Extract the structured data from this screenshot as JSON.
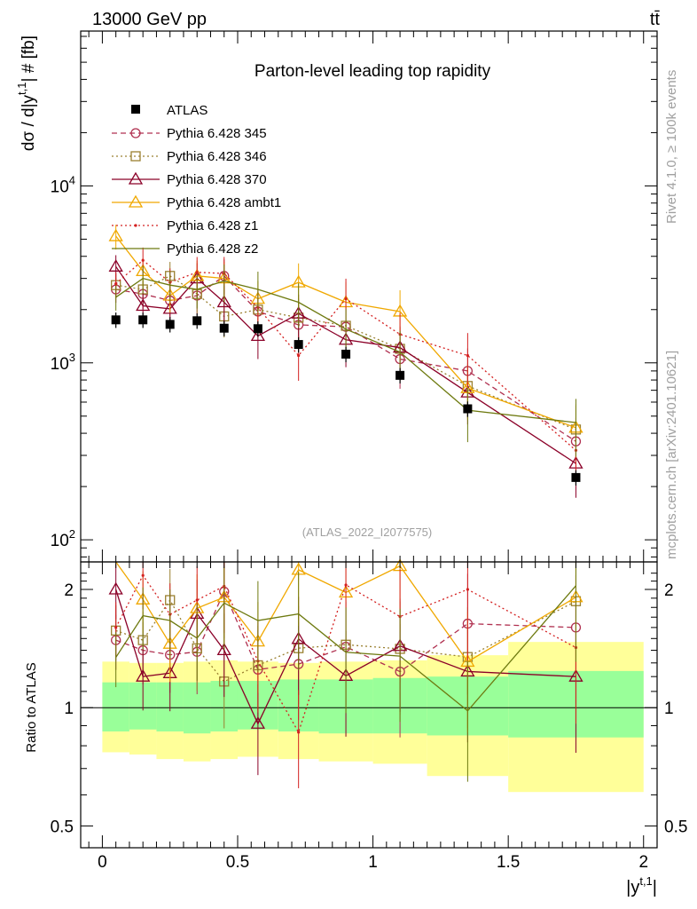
{
  "header": {
    "left": "13000 GeV pp",
    "right": "tt̄"
  },
  "side_labels": {
    "rivet": "Rivet 4.1.0, ≥ 100k events",
    "mcplots": "mcplots.cern.ch [arXiv:2401.10621]"
  },
  "chart_data": {
    "type": "line",
    "title": "Parton-level leading top rapidity",
    "analysis": "(ATLAS_2022_I2077575)",
    "xlabel": "|y^{t,1}|",
    "ylabel": "dσ / d|y^{t,1}| # [fb]",
    "ratio_ylabel": "Ratio to ATLAS",
    "xlim": [
      -0.08,
      2.05
    ],
    "ylim": [
      75,
      75000
    ],
    "ratio_ylim": [
      0.44,
      2.35
    ],
    "x_ticks": [
      "0",
      "0.5",
      "1",
      "1.5",
      "2"
    ],
    "x_tick_values": [
      0,
      0.5,
      1,
      1.5,
      2
    ],
    "y_ticks": [
      "10^2",
      "10^3",
      "10^4"
    ],
    "y_tick_values": [
      100,
      1000,
      10000
    ],
    "ratio_ticks": [
      "0.5",
      "1",
      "2"
    ],
    "ratio_tick_values": [
      0.5,
      1,
      2
    ],
    "x": [
      0.05,
      0.15,
      0.25,
      0.35,
      0.45,
      0.575,
      0.725,
      0.9,
      1.1,
      1.35,
      1.75
    ],
    "data": {
      "name": "ATLAS",
      "values": [
        1750,
        1750,
        1650,
        1730,
        1570,
        1560,
        1270,
        1120,
        850,
        550,
        225
      ]
    },
    "bands": {
      "edges": [
        0,
        0.1,
        0.2,
        0.3,
        0.4,
        0.5,
        0.65,
        0.8,
        1.0,
        1.2,
        1.5,
        2.0
      ],
      "green_low": [
        0.87,
        0.88,
        0.87,
        0.86,
        0.87,
        0.88,
        0.87,
        0.86,
        0.86,
        0.85,
        0.84
      ],
      "green_high": [
        1.16,
        1.16,
        1.16,
        1.16,
        1.17,
        1.17,
        1.18,
        1.18,
        1.19,
        1.2,
        1.24
      ],
      "yellow_low": [
        0.77,
        0.76,
        0.74,
        0.73,
        0.74,
        0.75,
        0.74,
        0.73,
        0.72,
        0.67,
        0.61
      ],
      "yellow_high": [
        1.31,
        1.3,
        1.3,
        1.31,
        1.32,
        1.31,
        1.3,
        1.31,
        1.32,
        1.36,
        1.47
      ]
    },
    "series": [
      {
        "name": "Pythia 6.428 345",
        "color": "#b03050",
        "dash": "6,4",
        "marker": "circle",
        "values": [
          2600,
          2450,
          2250,
          2400,
          3100,
          1950,
          1640,
          1600,
          1050,
          900,
          360
        ]
      },
      {
        "name": "Pythia 6.428 346",
        "color": "#9a8030",
        "dash": "2,3",
        "marker": "square",
        "values": [
          2750,
          2600,
          3100,
          2450,
          1830,
          2000,
          1800,
          1620,
          1200,
          740,
          420
        ]
      },
      {
        "name": "Pythia 6.428 370",
        "color": "#8b0028",
        "dash": "",
        "marker": "triangle",
        "values": [
          3500,
          2100,
          2020,
          3000,
          2200,
          1420,
          1900,
          1350,
          1220,
          680,
          270
        ]
      },
      {
        "name": "Pythia 6.428 ambt1",
        "color": "#f0a800",
        "dash": "",
        "marker": "triangle",
        "values": [
          5200,
          3300,
          2400,
          3100,
          3000,
          2300,
          2850,
          2200,
          1950,
          720,
          430
        ]
      },
      {
        "name": "Pythia 6.428 z1",
        "color": "#d42020",
        "dash": "2,3",
        "marker": "dot",
        "values": [
          2800,
          3800,
          2850,
          3250,
          3200,
          2050,
          1100,
          2300,
          1450,
          1100,
          320
        ]
      },
      {
        "name": "Pythia 6.428 z2",
        "color": "#6e7a10",
        "dash": "",
        "marker": "none",
        "values": [
          2350,
          3000,
          2750,
          2600,
          2900,
          2600,
          2200,
          1550,
          1150,
          540,
          460
        ]
      }
    ]
  }
}
